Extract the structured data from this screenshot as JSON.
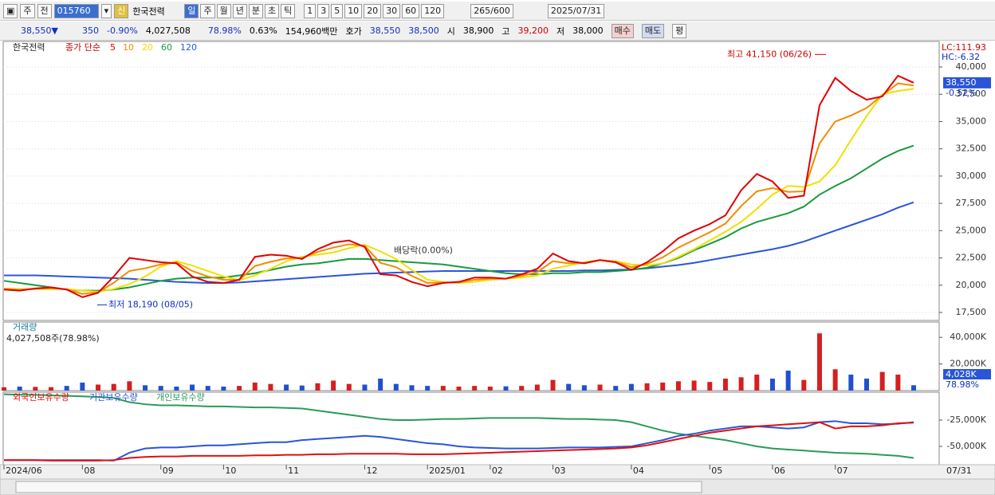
{
  "toolbar": {
    "left": [
      "주",
      "전"
    ],
    "code": "015760",
    "mode": "신",
    "name": "한국전력",
    "periods": [
      "일",
      "주",
      "월",
      "년",
      "분",
      "초",
      "틱"
    ],
    "intervals": [
      "1",
      "3",
      "5",
      "10",
      "20",
      "30",
      "60",
      "120"
    ],
    "count": "265",
    "count_max": "/600",
    "date": "2025/07/31"
  },
  "quote": {
    "price": "38,550",
    "price_arrow": "▼",
    "change": "350",
    "change_pct": "-0.90%",
    "volume": "4,027,508",
    "volume_ratio": "78.98%",
    "turnover": "0.63%",
    "amount": "154,960백만",
    "ask_label": "호가",
    "ask": "38,550",
    "bid": "38,500",
    "open_label": "시",
    "open": "38,900",
    "high_label": "고",
    "high": "39,200",
    "low_label": "저",
    "low": "38,000",
    "buttons": [
      "매수",
      "매도",
      "평"
    ]
  },
  "chart_data": [
    {
      "type": "line",
      "title": "한국전력",
      "subtitle": "종가 단순",
      "lc": "LC:111.93",
      "hc": "HC:-6.32",
      "last_label": "38,550",
      "last_change": "-0.52%",
      "grid": true,
      "ylim": [
        16770,
        42340
      ],
      "yticks": [
        {
          "value": 17500,
          "label": "17,500"
        },
        {
          "value": 20000,
          "label": "20,000"
        },
        {
          "value": 22500,
          "label": "22,500"
        },
        {
          "value": 25000,
          "label": "25,000"
        },
        {
          "value": 27500,
          "label": "27,500"
        },
        {
          "value": 30000,
          "label": "30,000"
        },
        {
          "value": 32500,
          "label": "32,500"
        },
        {
          "value": 35000,
          "label": "35,000"
        },
        {
          "value": 37500,
          "label": "37,500"
        },
        {
          "value": 40000,
          "label": "40,000"
        }
      ],
      "annotations": [
        {
          "text": "최고 41,150 (06/26)",
          "value": 41150,
          "color": "#d00000"
        },
        {
          "text": "최저 18,190 (08/05)",
          "value": 18190,
          "color": "#1030c0"
        },
        {
          "text": "배당락(0.00%)",
          "value": 22500,
          "color": "#333333"
        }
      ],
      "series": [
        {
          "name": "5",
          "color": "#e00000",
          "values": [
            19600,
            19500,
            19700,
            19800,
            19600,
            18900,
            19300,
            20800,
            22500,
            22300,
            22100,
            22000,
            20800,
            20300,
            20200,
            20500,
            22600,
            22800,
            22700,
            22400,
            23300,
            23900,
            24100,
            23500,
            21000,
            20900,
            20300,
            19900,
            20200,
            20300,
            20700,
            20700,
            20600,
            21000,
            21500,
            22900,
            22200,
            22000,
            22300,
            22100,
            21400,
            22100,
            23100,
            24300,
            25000,
            25600,
            26400,
            28700,
            30200,
            29500,
            28000,
            28200,
            36500,
            39000,
            37800,
            37000,
            37300,
            39200,
            38550
          ]
        },
        {
          "name": "10",
          "color": "#f08c00",
          "values": [
            19650,
            19575,
            19675,
            19725,
            19625,
            19200,
            19350,
            20225,
            21300,
            21550,
            21900,
            22100,
            21300,
            20800,
            20500,
            20475,
            21750,
            22150,
            22450,
            22500,
            23050,
            23450,
            23750,
            23600,
            22050,
            21650,
            20850,
            20200,
            20250,
            20250,
            20500,
            20600,
            20600,
            20850,
            21200,
            22200,
            22000,
            22050,
            22300,
            22150,
            21650,
            21950,
            22550,
            23450,
            24150,
            24850,
            25650,
            27250,
            28600,
            28900,
            28550,
            28600,
            33000,
            35000,
            35550,
            36250,
            37400,
            38500,
            38300
          ]
        },
        {
          "name": "20",
          "color": "#f0e000",
          "values": [
            19700,
            19650,
            19650,
            19650,
            19650,
            19500,
            19400,
            19650,
            20100,
            20800,
            21700,
            22200,
            21800,
            21300,
            20800,
            20450,
            20900,
            21500,
            22200,
            22600,
            22800,
            23000,
            23400,
            23700,
            23100,
            22400,
            21400,
            20500,
            20300,
            20200,
            20300,
            20500,
            20600,
            20700,
            20900,
            21500,
            21800,
            22100,
            22300,
            22200,
            21900,
            21800,
            22000,
            22600,
            23300,
            24100,
            24900,
            25800,
            27000,
            28300,
            29100,
            29000,
            29500,
            31000,
            33300,
            35500,
            37500,
            37800,
            38000
          ]
        },
        {
          "name": "60",
          "color": "#1a9a3a",
          "values": [
            20400,
            20200,
            20000,
            19800,
            19600,
            19500,
            19500,
            19600,
            19800,
            20100,
            20400,
            20600,
            20700,
            20700,
            20700,
            20900,
            21100,
            21400,
            21700,
            21900,
            22000,
            22200,
            22400,
            22400,
            22300,
            22200,
            22100,
            22000,
            21900,
            21700,
            21500,
            21300,
            21100,
            21000,
            21000,
            21100,
            21100,
            21200,
            21200,
            21300,
            21400,
            21600,
            22000,
            22500,
            23200,
            23800,
            24400,
            25200,
            25800,
            26200,
            26600,
            27200,
            28300,
            29100,
            29800,
            30700,
            31600,
            32300,
            32800
          ]
        },
        {
          "name": "120",
          "color": "#2a55d8",
          "values": [
            20900,
            20900,
            20900,
            20850,
            20800,
            20750,
            20700,
            20650,
            20600,
            20500,
            20400,
            20300,
            20250,
            20200,
            20200,
            20250,
            20350,
            20450,
            20550,
            20650,
            20750,
            20850,
            20950,
            21050,
            21100,
            21150,
            21200,
            21250,
            21300,
            21300,
            21300,
            21300,
            21300,
            21300,
            21300,
            21300,
            21300,
            21350,
            21350,
            21400,
            21450,
            21550,
            21700,
            21850,
            22050,
            22300,
            22550,
            22800,
            23050,
            23300,
            23600,
            24000,
            24500,
            25000,
            25500,
            26000,
            26500,
            27100,
            27600
          ]
        }
      ]
    },
    {
      "type": "bar",
      "title": "거래량",
      "subtitle": "4,027,508주(78.98%)",
      "last_label": "4,028K",
      "last_ratio": "78.98%",
      "up_color": "#d42020",
      "down_color": "#2050d0",
      "ylim": [
        0,
        51500
      ],
      "yticks": [
        {
          "value": 20000,
          "label": "20,000K"
        },
        {
          "value": 40000,
          "label": "40,000K"
        }
      ],
      "values": [
        2500,
        3000,
        2800,
        2600,
        3500,
        6000,
        4500,
        5000,
        7000,
        4000,
        3500,
        3000,
        4500,
        3500,
        3000,
        3500,
        6000,
        5000,
        4500,
        3800,
        5500,
        7500,
        5000,
        4500,
        9000,
        5000,
        4000,
        3500,
        3500,
        3000,
        3500,
        3000,
        3200,
        3500,
        4500,
        8000,
        5000,
        4000,
        4500,
        3500,
        5000,
        5500,
        6000,
        7000,
        7500,
        6500,
        9000,
        10000,
        12000,
        9000,
        15000,
        8000,
        43000,
        16000,
        12000,
        9000,
        14000,
        12000,
        4028
      ]
    },
    {
      "type": "line",
      "x_end_label": "07/31",
      "categories": [
        "2024/06",
        null,
        null,
        null,
        null,
        "08",
        null,
        null,
        null,
        null,
        "09",
        null,
        null,
        null,
        "10",
        null,
        null,
        null,
        "11",
        null,
        null,
        null,
        null,
        "12",
        null,
        null,
        null,
        "2025/01",
        null,
        null,
        null,
        "02",
        null,
        null,
        null,
        "03",
        null,
        null,
        null,
        null,
        "04",
        null,
        null,
        null,
        null,
        "05",
        null,
        null,
        null,
        "06",
        null,
        null,
        null,
        "07",
        null,
        null,
        null,
        null,
        null
      ],
      "ylim": [
        -67400,
        1500
      ],
      "yticks": [
        {
          "value": -25000,
          "label": "-25,000K"
        },
        {
          "value": -50000,
          "label": "-50,000K"
        }
      ],
      "series": [
        {
          "name": "외국인보유수량",
          "color": "#e01010",
          "values": [
            -63000,
            -63000,
            -63000,
            -63500,
            -63500,
            -63500,
            -63500,
            -63000,
            -61000,
            -60000,
            -59500,
            -59500,
            -59000,
            -59000,
            -59000,
            -59000,
            -58500,
            -58500,
            -58000,
            -58000,
            -57500,
            -57500,
            -57000,
            -57000,
            -57000,
            -57000,
            -57500,
            -57500,
            -57500,
            -57000,
            -56500,
            -56000,
            -55500,
            -55000,
            -54500,
            -54000,
            -53500,
            -53000,
            -52500,
            -52000,
            -51000,
            -49000,
            -46000,
            -43000,
            -40000,
            -37000,
            -35000,
            -33000,
            -31000,
            -30000,
            -29000,
            -28000,
            -27000,
            -33000,
            -31000,
            -31000,
            -30000,
            -28000,
            -27500
          ]
        },
        {
          "name": "기관보유수량",
          "color": "#2a55d8",
          "values": [
            -63000,
            -63000,
            -63000,
            -63000,
            -63000,
            -63000,
            -63000,
            -63500,
            -56000,
            -52000,
            -51000,
            -51000,
            -50000,
            -49000,
            -49000,
            -48000,
            -47000,
            -46000,
            -46000,
            -44000,
            -43000,
            -42000,
            -41000,
            -40000,
            -41000,
            -43000,
            -45000,
            -47000,
            -48000,
            -50000,
            -51000,
            -51500,
            -52000,
            -52000,
            -52000,
            -51500,
            -51000,
            -51000,
            -51000,
            -50500,
            -50000,
            -47000,
            -44000,
            -40000,
            -38000,
            -35000,
            -33000,
            -31000,
            -31000,
            -32000,
            -33000,
            -32000,
            -27000,
            -26000,
            -28000,
            -28000,
            -29000,
            -28500,
            -27000
          ]
        },
        {
          "name": "개인보유수량",
          "color": "#2a9a5a",
          "values": [
            -500,
            -1000,
            -1000,
            -1500,
            -2000,
            -2500,
            -3000,
            -4000,
            -8000,
            -10000,
            -11000,
            -11000,
            -11500,
            -12000,
            -12000,
            -12500,
            -13000,
            -13000,
            -13500,
            -14000,
            -16000,
            -18000,
            -20000,
            -22000,
            -24000,
            -25000,
            -25000,
            -24500,
            -24000,
            -24000,
            -23500,
            -23000,
            -23000,
            -23000,
            -23000,
            -23500,
            -24000,
            -24000,
            -24500,
            -25000,
            -27000,
            -31000,
            -35000,
            -38000,
            -40000,
            -42000,
            -44000,
            -47000,
            -50000,
            -52000,
            -53000,
            -54000,
            -55000,
            -56000,
            -56500,
            -57000,
            -58000,
            -59000,
            -61000
          ]
        }
      ]
    }
  ]
}
